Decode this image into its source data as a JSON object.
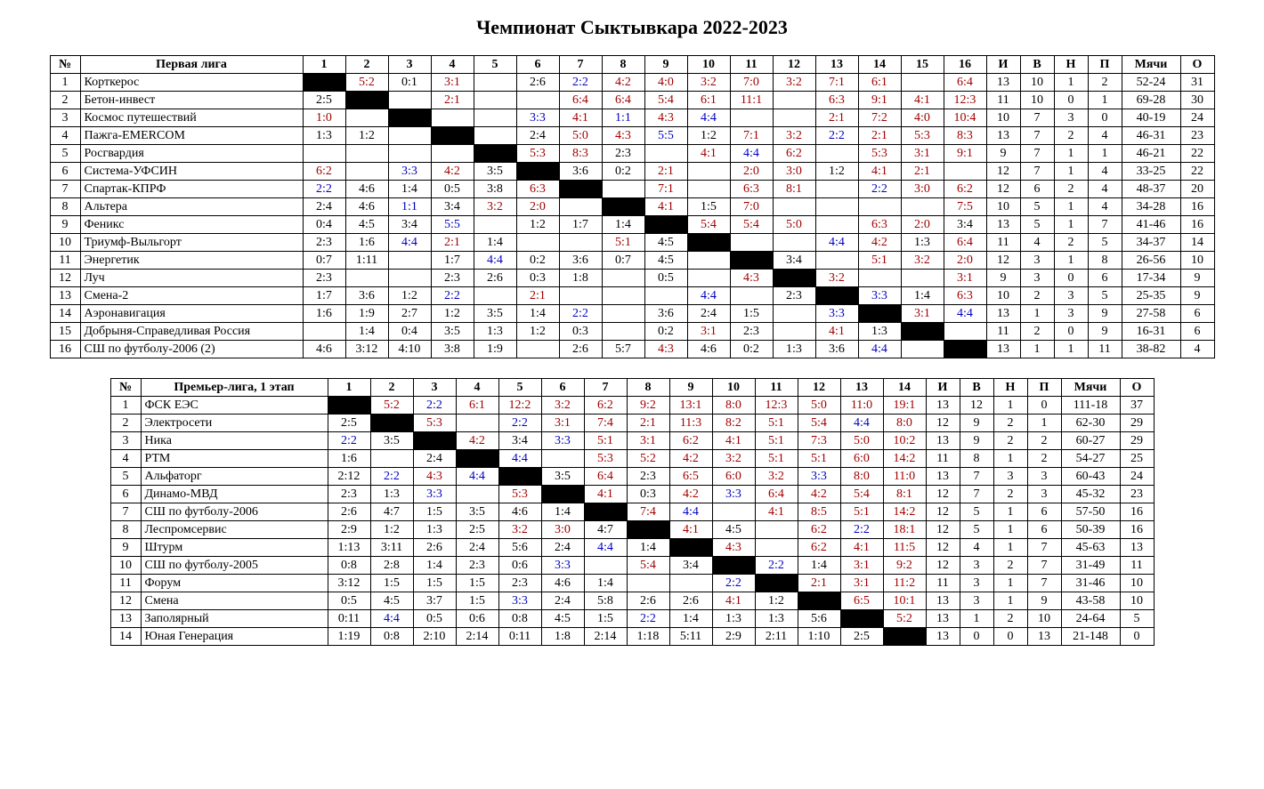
{
  "title": "Чемпионат Сыктывкара 2022-2023",
  "colors": {
    "win": "#a00000",
    "draw": "#0000c0",
    "loss": "#000000",
    "diag": "#000000",
    "border": "#000000",
    "bg": "#ffffff"
  },
  "fontsizes": {
    "title": 22,
    "table": 14
  },
  "col_widths": {
    "num": 34,
    "team_t1": 250,
    "team_t2": 210,
    "score": 48,
    "stat": 38,
    "goals": 66
  },
  "stat_headers": [
    "И",
    "В",
    "Н",
    "П",
    "Мячи",
    "О"
  ],
  "tables": [
    {
      "id": "t1",
      "league_header": "Первая лига",
      "n_opponents": 16,
      "rows": [
        {
          "num": 1,
          "team": "Корткерос",
          "scores": [
            "",
            "5:2",
            "0:1",
            "3:1",
            "",
            "2:6",
            "2:2",
            "4:2",
            "4:0",
            "3:2",
            "7:0",
            "3:2",
            "7:1",
            "6:1",
            "",
            "6:4"
          ],
          "stats": [
            "13",
            "10",
            "1",
            "2",
            "52-24",
            "31"
          ]
        },
        {
          "num": 2,
          "team": "Бетон-инвест",
          "scores": [
            "2:5",
            "",
            "",
            "2:1",
            "",
            "",
            "6:4",
            "6:4",
            "5:4",
            "6:1",
            "11:1",
            "",
            "6:3",
            "9:1",
            "4:1",
            "12:3"
          ],
          "stats": [
            "11",
            "10",
            "0",
            "1",
            "69-28",
            "30"
          ]
        },
        {
          "num": 3,
          "team": "Космос путешествий",
          "scores": [
            "1:0",
            "",
            "",
            "",
            "",
            "3:3",
            "4:1",
            "1:1",
            "4:3",
            "4:4",
            "",
            "",
            "2:1",
            "7:2",
            "4:0",
            "10:4"
          ],
          "stats": [
            "10",
            "7",
            "3",
            "0",
            "40-19",
            "24"
          ]
        },
        {
          "num": 4,
          "team": "Пажга-EMERCOM",
          "scores": [
            "1:3",
            "1:2",
            "",
            "",
            "",
            "2:4",
            "5:0",
            "4:3",
            "5:5",
            "1:2",
            "7:1",
            "3:2",
            "2:2",
            "2:1",
            "5:3",
            "8:3"
          ],
          "stats": [
            "13",
            "7",
            "2",
            "4",
            "46-31",
            "23"
          ]
        },
        {
          "num": 5,
          "team": "Росгвардия",
          "scores": [
            "",
            "",
            "",
            "",
            "",
            "5:3",
            "8:3",
            "2:3",
            "",
            "4:1",
            "4:4",
            "6:2",
            "",
            "5:3",
            "3:1",
            "9:1"
          ],
          "stats": [
            "9",
            "7",
            "1",
            "1",
            "46-21",
            "22"
          ]
        },
        {
          "num": 6,
          "team": "Система-УФСИН",
          "scores": [
            "6:2",
            "",
            "3:3",
            "4:2",
            "3:5",
            "",
            "3:6",
            "0:2",
            "2:1",
            "",
            "2:0",
            "3:0",
            "1:2",
            "4:1",
            "2:1",
            ""
          ],
          "stats": [
            "12",
            "7",
            "1",
            "4",
            "33-25",
            "22"
          ]
        },
        {
          "num": 7,
          "team": "Спартак-КПРФ",
          "scores": [
            "2:2",
            "4:6",
            "1:4",
            "0:5",
            "3:8",
            "6:3",
            "",
            "",
            "7:1",
            "",
            "6:3",
            "8:1",
            "",
            "2:2",
            "3:0",
            "6:2"
          ],
          "stats": [
            "12",
            "6",
            "2",
            "4",
            "48-37",
            "20"
          ]
        },
        {
          "num": 8,
          "team": "Альтера",
          "scores": [
            "2:4",
            "4:6",
            "1:1",
            "3:4",
            "3:2",
            "2:0",
            "",
            "",
            "4:1",
            "1:5",
            "7:0",
            "",
            "",
            "",
            "",
            "7:5"
          ],
          "stats": [
            "10",
            "5",
            "1",
            "4",
            "34-28",
            "16"
          ]
        },
        {
          "num": 9,
          "team": "Феникс",
          "scores": [
            "0:4",
            "4:5",
            "3:4",
            "5:5",
            "",
            "1:2",
            "1:7",
            "1:4",
            "",
            "5:4",
            "5:4",
            "5:0",
            "",
            "6:3",
            "2:0",
            "3:4"
          ],
          "stats": [
            "13",
            "5",
            "1",
            "7",
            "41-46",
            "16"
          ]
        },
        {
          "num": 10,
          "team": "Триумф-Выльгорт",
          "scores": [
            "2:3",
            "1:6",
            "4:4",
            "2:1",
            "1:4",
            "",
            "",
            "5:1",
            "4:5",
            "",
            "",
            "",
            "4:4",
            "4:2",
            "1:3",
            "6:4"
          ],
          "stats": [
            "11",
            "4",
            "2",
            "5",
            "34-37",
            "14"
          ]
        },
        {
          "num": 11,
          "team": "Энергетик",
          "scores": [
            "0:7",
            "1:11",
            "",
            "1:7",
            "4:4",
            "0:2",
            "3:6",
            "0:7",
            "4:5",
            "",
            "",
            "3:4",
            "",
            "5:1",
            "3:2",
            "2:0"
          ],
          "stats": [
            "12",
            "3",
            "1",
            "8",
            "26-56",
            "10"
          ]
        },
        {
          "num": 12,
          "team": "Луч",
          "scores": [
            "2:3",
            "",
            "",
            "2:3",
            "2:6",
            "0:3",
            "1:8",
            "",
            "0:5",
            "",
            "4:3",
            "",
            "3:2",
            "",
            "",
            "3:1"
          ],
          "stats": [
            "9",
            "3",
            "0",
            "6",
            "17-34",
            "9"
          ]
        },
        {
          "num": 13,
          "team": "Смена-2",
          "scores": [
            "1:7",
            "3:6",
            "1:2",
            "2:2",
            "",
            "2:1",
            "",
            "",
            "",
            "4:4",
            "",
            "2:3",
            "",
            "3:3",
            "1:4",
            "6:3"
          ],
          "stats": [
            "10",
            "2",
            "3",
            "5",
            "25-35",
            "9"
          ]
        },
        {
          "num": 14,
          "team": "Аэронавигация",
          "scores": [
            "1:6",
            "1:9",
            "2:7",
            "1:2",
            "3:5",
            "1:4",
            "2:2",
            "",
            "3:6",
            "2:4",
            "1:5",
            "",
            "3:3",
            "",
            "3:1",
            "4:4"
          ],
          "stats": [
            "13",
            "1",
            "3",
            "9",
            "27-58",
            "6"
          ]
        },
        {
          "num": 15,
          "team": "Добрыня-Справедливая Россия",
          "scores": [
            "",
            "1:4",
            "0:4",
            "3:5",
            "1:3",
            "1:2",
            "0:3",
            "",
            "0:2",
            "3:1",
            "2:3",
            "",
            "4:1",
            "1:3",
            "",
            ""
          ],
          "stats": [
            "11",
            "2",
            "0",
            "9",
            "16-31",
            "6"
          ]
        },
        {
          "num": 16,
          "team": "СШ по футболу-2006 (2)",
          "scores": [
            "4:6",
            "3:12",
            "4:10",
            "3:8",
            "1:9",
            "",
            "2:6",
            "5:7",
            "4:3",
            "4:6",
            "0:2",
            "1:3",
            "3:6",
            "4:4",
            "",
            ""
          ],
          "stats": [
            "13",
            "1",
            "1",
            "11",
            "38-82",
            "4"
          ]
        }
      ]
    },
    {
      "id": "t2",
      "league_header": "Премьер-лига, 1 этап",
      "n_opponents": 14,
      "rows": [
        {
          "num": 1,
          "team": "ФСК ЕЭС",
          "scores": [
            "",
            "5:2",
            "2:2",
            "6:1",
            "12:2",
            "3:2",
            "6:2",
            "9:2",
            "13:1",
            "8:0",
            "12:3",
            "5:0",
            "11:0",
            "19:1"
          ],
          "stats": [
            "13",
            "12",
            "1",
            "0",
            "111-18",
            "37"
          ]
        },
        {
          "num": 2,
          "team": "Электросети",
          "scores": [
            "2:5",
            "",
            "5:3",
            "",
            "2:2",
            "3:1",
            "7:4",
            "2:1",
            "11:3",
            "8:2",
            "5:1",
            "5:4",
            "4:4",
            "8:0"
          ],
          "stats": [
            "12",
            "9",
            "2",
            "1",
            "62-30",
            "29"
          ]
        },
        {
          "num": 3,
          "team": "Ника",
          "scores": [
            "2:2",
            "3:5",
            "",
            "4:2",
            "3:4",
            "3:3",
            "5:1",
            "3:1",
            "6:2",
            "4:1",
            "5:1",
            "7:3",
            "5:0",
            "10:2"
          ],
          "stats": [
            "13",
            "9",
            "2",
            "2",
            "60-27",
            "29"
          ]
        },
        {
          "num": 4,
          "team": "РТМ",
          "scores": [
            "1:6",
            "",
            "2:4",
            "",
            "4:4",
            "",
            "5:3",
            "5:2",
            "4:2",
            "3:2",
            "5:1",
            "5:1",
            "6:0",
            "14:2"
          ],
          "stats": [
            "11",
            "8",
            "1",
            "2",
            "54-27",
            "25"
          ]
        },
        {
          "num": 5,
          "team": "Альфаторг",
          "scores": [
            "2:12",
            "2:2",
            "4:3",
            "4:4",
            "",
            "3:5",
            "6:4",
            "2:3",
            "6:5",
            "6:0",
            "3:2",
            "3:3",
            "8:0",
            "11:0"
          ],
          "stats": [
            "13",
            "7",
            "3",
            "3",
            "60-43",
            "24"
          ]
        },
        {
          "num": 6,
          "team": "Динамо-МВД",
          "scores": [
            "2:3",
            "1:3",
            "3:3",
            "",
            "5:3",
            "",
            "4:1",
            "0:3",
            "4:2",
            "3:3",
            "6:4",
            "4:2",
            "5:4",
            "8:1"
          ],
          "stats": [
            "12",
            "7",
            "2",
            "3",
            "45-32",
            "23"
          ]
        },
        {
          "num": 7,
          "team": "СШ по футболу-2006",
          "scores": [
            "2:6",
            "4:7",
            "1:5",
            "3:5",
            "4:6",
            "1:4",
            "",
            "7:4",
            "4:4",
            "",
            "4:1",
            "8:5",
            "5:1",
            "14:2"
          ],
          "stats": [
            "12",
            "5",
            "1",
            "6",
            "57-50",
            "16"
          ]
        },
        {
          "num": 8,
          "team": "Леспромсервис",
          "scores": [
            "2:9",
            "1:2",
            "1:3",
            "2:5",
            "3:2",
            "3:0",
            "4:7",
            "",
            "4:1",
            "4:5",
            "",
            "6:2",
            "2:2",
            "18:1"
          ],
          "stats": [
            "12",
            "5",
            "1",
            "6",
            "50-39",
            "16"
          ]
        },
        {
          "num": 9,
          "team": "Штурм",
          "scores": [
            "1:13",
            "3:11",
            "2:6",
            "2:4",
            "5:6",
            "2:4",
            "4:4",
            "1:4",
            "",
            "4:3",
            "",
            "6:2",
            "4:1",
            "11:5"
          ],
          "stats": [
            "12",
            "4",
            "1",
            "7",
            "45-63",
            "13"
          ]
        },
        {
          "num": 10,
          "team": "СШ по футболу-2005",
          "scores": [
            "0:8",
            "2:8",
            "1:4",
            "2:3",
            "0:6",
            "3:3",
            "",
            "5:4",
            "3:4",
            "",
            "2:2",
            "1:4",
            "3:1",
            "9:2"
          ],
          "stats": [
            "12",
            "3",
            "2",
            "7",
            "31-49",
            "11"
          ]
        },
        {
          "num": 11,
          "team": "Форум",
          "scores": [
            "3:12",
            "1:5",
            "1:5",
            "1:5",
            "2:3",
            "4:6",
            "1:4",
            "",
            "",
            "2:2",
            "",
            "2:1",
            "3:1",
            "11:2"
          ],
          "stats": [
            "11",
            "3",
            "1",
            "7",
            "31-46",
            "10"
          ]
        },
        {
          "num": 12,
          "team": "Смена",
          "scores": [
            "0:5",
            "4:5",
            "3:7",
            "1:5",
            "3:3",
            "2:4",
            "5:8",
            "2:6",
            "2:6",
            "4:1",
            "1:2",
            "",
            "6:5",
            "10:1"
          ],
          "stats": [
            "13",
            "3",
            "1",
            "9",
            "43-58",
            "10"
          ]
        },
        {
          "num": 13,
          "team": "Заполярный",
          "scores": [
            "0:11",
            "4:4",
            "0:5",
            "0:6",
            "0:8",
            "4:5",
            "1:5",
            "2:2",
            "1:4",
            "1:3",
            "1:3",
            "5:6",
            "",
            "5:2"
          ],
          "stats": [
            "13",
            "1",
            "2",
            "10",
            "24-64",
            "5"
          ]
        },
        {
          "num": 14,
          "team": "Юная Генерация",
          "scores": [
            "1:19",
            "0:8",
            "2:10",
            "2:14",
            "0:11",
            "1:8",
            "2:14",
            "1:18",
            "5:11",
            "2:9",
            "2:11",
            "1:10",
            "2:5",
            ""
          ],
          "stats": [
            "13",
            "0",
            "0",
            "13",
            "21-148",
            "0"
          ]
        }
      ]
    }
  ]
}
